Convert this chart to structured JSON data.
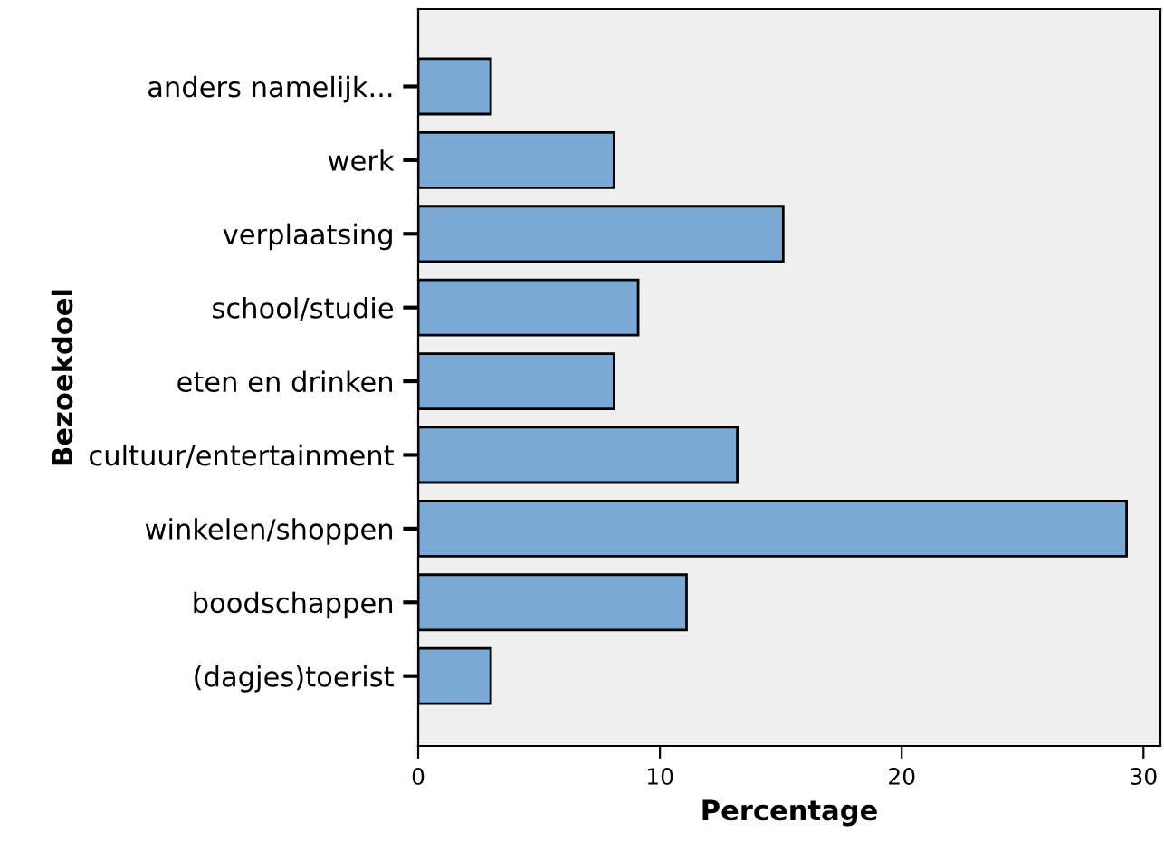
{
  "chart_data": {
    "type": "bar",
    "orientation": "horizontal",
    "xlabel": "Percentage",
    "ylabel": "Bezoekdoel",
    "categories": [
      "anders namelijk...",
      "werk",
      "verplaatsing",
      "school/studie",
      "eten en drinken",
      "cultuur/entertainment",
      "winkelen/shoppen",
      "boodschappen",
      "(dagjes)toerist"
    ],
    "values": [
      3.0,
      8.1,
      15.1,
      9.1,
      8.1,
      13.2,
      29.3,
      11.1,
      3.0
    ],
    "color": "#7ba9d6",
    "xlim": [
      0,
      30.7
    ],
    "xticks": [
      0,
      10,
      20,
      30
    ],
    "grid": false,
    "legend": false
  }
}
